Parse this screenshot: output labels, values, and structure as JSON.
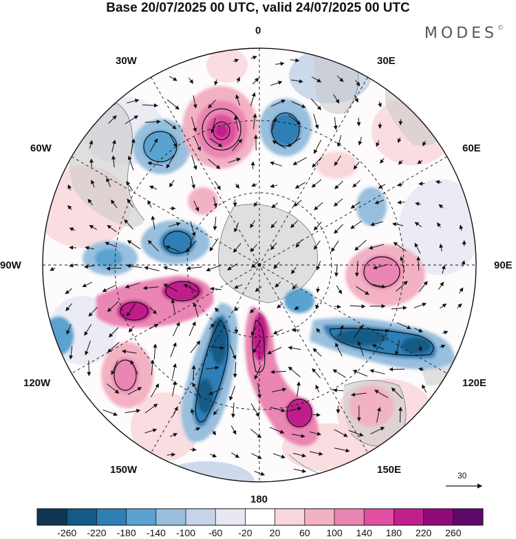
{
  "title": "Base 20/07/2025 00 UTC, valid 24/07/2025 00 UTC",
  "brand": "MODES",
  "brand_mark": "©",
  "longitude_labels": {
    "top": "0",
    "top_left": "30W",
    "top_right": "30E",
    "upper_left": "60W",
    "upper_right": "60E",
    "left": "90W",
    "right": "90E",
    "lower_left": "120W",
    "lower_right": "120E",
    "bottom_left": "150W",
    "bottom_right": "150E",
    "bottom": "180"
  },
  "vector_scale": "30",
  "colorbar": {
    "ticks": [
      "-260",
      "-220",
      "-180",
      "-140",
      "-100",
      "-60",
      "-20",
      "20",
      "60",
      "100",
      "140",
      "180",
      "220",
      "260"
    ],
    "colors": [
      "#0f3652",
      "#145a86",
      "#2f7fb6",
      "#5aa2cf",
      "#98bfdd",
      "#c5d4e8",
      "#e8e8f3",
      "#ffffff",
      "#f8d7db",
      "#f2b2c3",
      "#ea86b3",
      "#df4fa2",
      "#c01f8c",
      "#8e0b79",
      "#5d0a6b"
    ]
  },
  "palette": {
    "land": "#c8c8c8",
    "grid": "#111111",
    "arrow": "#111111"
  }
}
